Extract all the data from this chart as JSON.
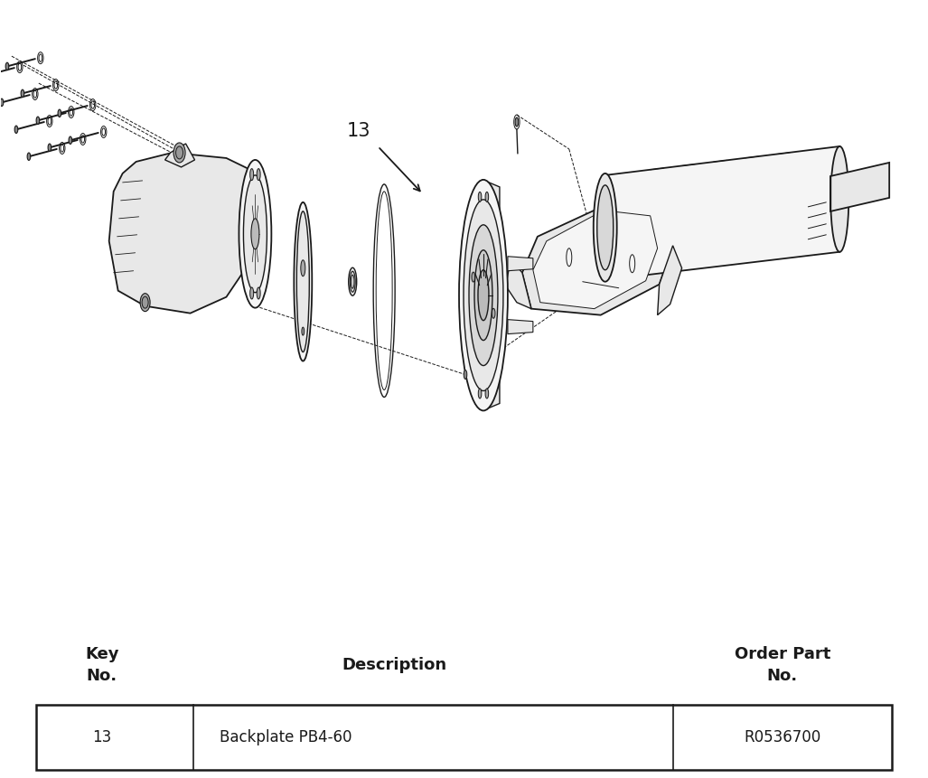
{
  "bg_color": "#ffffff",
  "line_color": "#1a1a1a",
  "text_color": "#1a1a1a",
  "face_color": "#f5f5f5",
  "face_color2": "#e8e8e8",
  "face_color3": "#d8d8d8",
  "table_row": [
    "13",
    "Backplate PB4-60",
    "R0536700"
  ],
  "header_fontsize": 13,
  "table_fontsize": 12,
  "label_fontsize": 15,
  "part_num": "13"
}
